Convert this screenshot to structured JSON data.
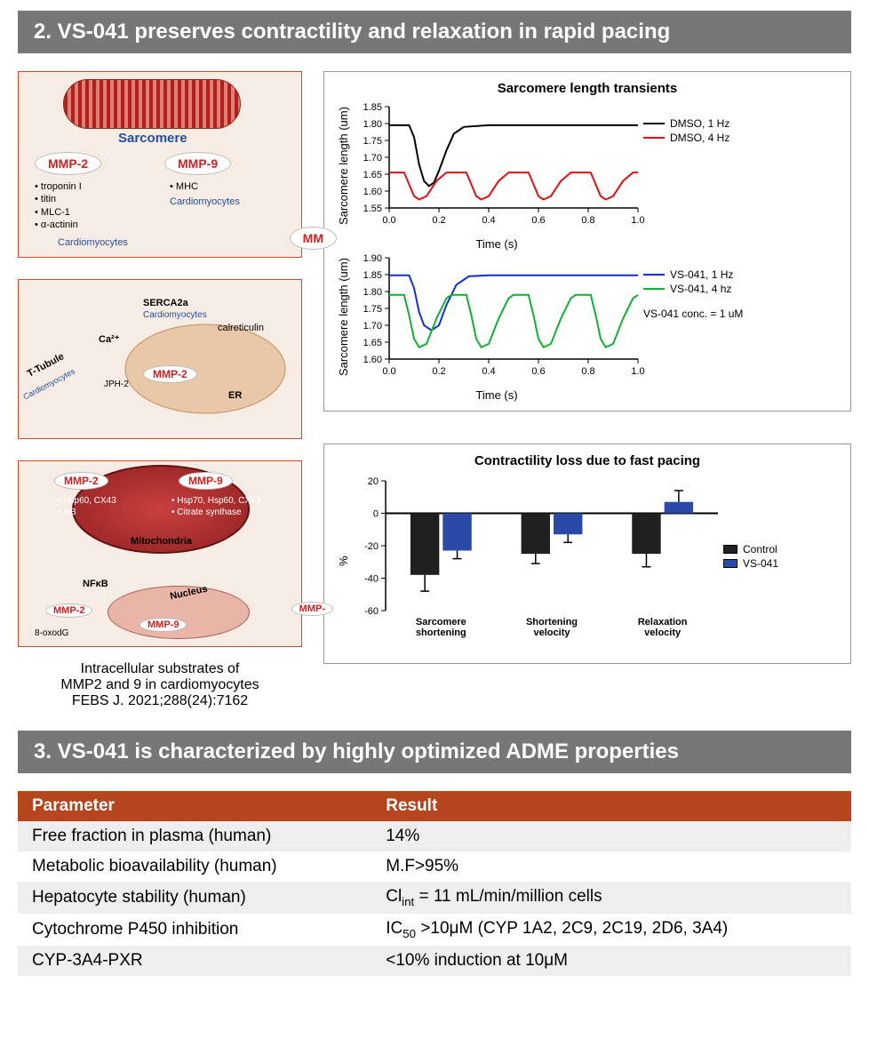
{
  "section2": {
    "header": "2.   VS-041 preserves contractility and relaxation in rapid pacing",
    "diagram1": {
      "sarcomere_label": "Sarcomere",
      "mmp2": "MMP-2",
      "mmp9": "MMP-9",
      "mmp2_subs": [
        "troponin I",
        "titin",
        "MLC-1",
        "α-actinin"
      ],
      "mmp9_subs": [
        "MHC"
      ],
      "cell": "Cardiomyocytes"
    },
    "diagram2": {
      "labels": [
        "SERCA2a",
        "Cardiomyocytes",
        "calreticulin",
        "MMP-2",
        "ER",
        "T-Tubule",
        "Cardiomyocytes",
        "Ca²⁺",
        "JPH-2"
      ]
    },
    "diagram3": {
      "mmp2": "MMP-2",
      "mmp9": "MMP-9",
      "mmp2_subs": [
        "Hsp60, CX43",
        "IκB"
      ],
      "mmp9_subs": [
        "Hsp70, Hsp60, CX43",
        "Citrate synthase"
      ],
      "mito": "Mitochondria",
      "nfkb": "NFκB",
      "nucleus": "Nucleus",
      "mmp2b": "MMP-2",
      "mmp9b": "MMP-9",
      "oxodg": "8-oxodG"
    },
    "caption_l1": "Intracellular substrates of",
    "caption_l2": "MMP2 and 9 in cardiomyocytes",
    "caption_l3": "FEBS J. 2021;288(24):7162",
    "chart1": {
      "title": "Sarcomere length transients",
      "ylabel": "Sarcomere length (um)",
      "xlabel": "Time (s)",
      "xlim": [
        0.0,
        1.0
      ],
      "xtick_step": 0.2,
      "top": {
        "ylim": [
          1.55,
          1.85
        ],
        "ytick_step": 0.05,
        "series": [
          {
            "label": "DMSO, 1 Hz",
            "color": "#000000",
            "width": 2,
            "x": [
              0.0,
              0.08,
              0.1,
              0.12,
              0.14,
              0.16,
              0.18,
              0.2,
              0.23,
              0.26,
              0.3,
              0.4,
              1.0
            ],
            "y": [
              1.795,
              1.795,
              1.76,
              1.68,
              1.63,
              1.615,
              1.625,
              1.66,
              1.72,
              1.77,
              1.79,
              1.795,
              1.795
            ]
          },
          {
            "label": "DMSO, 4 Hz",
            "color": "#e01010",
            "width": 2,
            "x": [
              0.0,
              0.06,
              0.08,
              0.1,
              0.12,
              0.15,
              0.19,
              0.23,
              0.25,
              0.31,
              0.33,
              0.35,
              0.37,
              0.4,
              0.44,
              0.48,
              0.5,
              0.56,
              0.58,
              0.6,
              0.62,
              0.65,
              0.69,
              0.73,
              0.75,
              0.81,
              0.83,
              0.85,
              0.87,
              0.9,
              0.94,
              0.98,
              1.0
            ],
            "y": [
              1.655,
              1.655,
              1.62,
              1.585,
              1.575,
              1.585,
              1.63,
              1.655,
              1.655,
              1.655,
              1.62,
              1.585,
              1.575,
              1.585,
              1.63,
              1.655,
              1.655,
              1.655,
              1.62,
              1.585,
              1.575,
              1.585,
              1.63,
              1.655,
              1.655,
              1.655,
              1.62,
              1.585,
              1.575,
              1.585,
              1.63,
              1.655,
              1.655
            ]
          }
        ]
      },
      "bottom": {
        "ylim": [
          1.6,
          1.9
        ],
        "ytick_step": 0.05,
        "note": "VS-041 conc. = 1 uM",
        "series": [
          {
            "label": "VS-041, 1 Hz",
            "color": "#1030d0",
            "width": 2,
            "x": [
              0.0,
              0.08,
              0.1,
              0.12,
              0.14,
              0.17,
              0.2,
              0.23,
              0.27,
              0.32,
              0.4,
              1.0
            ],
            "y": [
              1.848,
              1.848,
              1.81,
              1.74,
              1.7,
              1.685,
              1.7,
              1.76,
              1.82,
              1.845,
              1.848,
              1.848
            ]
          },
          {
            "label": "VS-041, 4 hz",
            "color": "#10b030",
            "width": 2,
            "x": [
              0.0,
              0.06,
              0.08,
              0.1,
              0.12,
              0.15,
              0.19,
              0.23,
              0.25,
              0.31,
              0.33,
              0.35,
              0.37,
              0.4,
              0.44,
              0.48,
              0.5,
              0.56,
              0.58,
              0.6,
              0.62,
              0.65,
              0.69,
              0.73,
              0.75,
              0.81,
              0.83,
              0.85,
              0.87,
              0.9,
              0.94,
              0.98,
              1.0
            ],
            "y": [
              1.79,
              1.79,
              1.73,
              1.66,
              1.635,
              1.645,
              1.72,
              1.78,
              1.79,
              1.79,
              1.73,
              1.66,
              1.635,
              1.645,
              1.72,
              1.78,
              1.79,
              1.79,
              1.73,
              1.66,
              1.635,
              1.645,
              1.72,
              1.78,
              1.79,
              1.79,
              1.73,
              1.66,
              1.635,
              1.645,
              1.72,
              1.78,
              1.79
            ]
          }
        ]
      }
    },
    "chart2": {
      "title": "Contractility loss due to fast pacing",
      "ylabel": "%",
      "ylim": [
        -60,
        20
      ],
      "ytick_step": 20,
      "categories": [
        "Sarcomere\nshortening",
        "Shortening\nvelocity",
        "Relaxation\nvelocity"
      ],
      "series": [
        {
          "label": "Control",
          "color": "#202020",
          "values": [
            -38,
            -25,
            -25
          ],
          "err": [
            10,
            6,
            8
          ]
        },
        {
          "label": "VS-041",
          "color": "#2a4aa8",
          "values": [
            -23,
            -13,
            7
          ],
          "err": [
            5,
            5,
            7
          ]
        }
      ]
    }
  },
  "section3": {
    "header": "3.   VS-041 is characterized by highly optimized ADME properties",
    "table": {
      "columns": [
        "Parameter",
        "Result"
      ],
      "rows": [
        [
          "Free fraction in plasma (human)",
          "14%"
        ],
        [
          "Metabolic bioavailability (human)",
          "M.F>95%"
        ],
        [
          "Hepatocyte stability (human)",
          "Cl<sub>int</sub> = 11 mL/min/million cells"
        ],
        [
          "Cytochrome P450 inhibition",
          "IC<sub>50</sub> >10μM   (CYP 1A2, 2C9, 2C19, 2D6, 3A4)"
        ],
        [
          "CYP-3A4-PXR",
          "<10% induction at 10μM"
        ]
      ]
    }
  }
}
